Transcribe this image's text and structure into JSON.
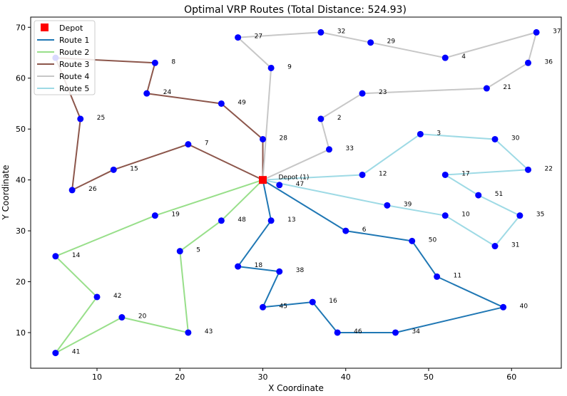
{
  "chart_data": {
    "type": "line",
    "title": "Optimal VRP Routes (Total Distance: 524.93)",
    "xlabel": "X Coordinate",
    "ylabel": "Y Coordinate",
    "xlim": [
      2,
      66
    ],
    "ylim": [
      3,
      72
    ],
    "xticks": [
      10,
      20,
      30,
      40,
      50,
      60
    ],
    "yticks": [
      10,
      20,
      30,
      40,
      50,
      60,
      70
    ],
    "grid": false,
    "legend_position": "top-left",
    "depot": {
      "label": "Depot (1)",
      "x": 30,
      "y": 40,
      "legend": "Depot",
      "color": "#ff0000"
    },
    "points": [
      {
        "id": "2",
        "x": 37,
        "y": 52
      },
      {
        "id": "3",
        "x": 49,
        "y": 49
      },
      {
        "id": "4",
        "x": 52,
        "y": 64
      },
      {
        "id": "5",
        "x": 20,
        "y": 26
      },
      {
        "id": "6",
        "x": 40,
        "y": 30
      },
      {
        "id": "7",
        "x": 21,
        "y": 47
      },
      {
        "id": "8",
        "x": 17,
        "y": 63
      },
      {
        "id": "9",
        "x": 31,
        "y": 62
      },
      {
        "id": "10",
        "x": 52,
        "y": 33
      },
      {
        "id": "11",
        "x": 51,
        "y": 21
      },
      {
        "id": "12",
        "x": 42,
        "y": 41
      },
      {
        "id": "13",
        "x": 31,
        "y": 32
      },
      {
        "id": "14",
        "x": 5,
        "y": 25
      },
      {
        "id": "15",
        "x": 12,
        "y": 42
      },
      {
        "id": "16",
        "x": 36,
        "y": 16
      },
      {
        "id": "17",
        "x": 52,
        "y": 41
      },
      {
        "id": "18",
        "x": 27,
        "y": 23
      },
      {
        "id": "19",
        "x": 17,
        "y": 33
      },
      {
        "id": "20",
        "x": 13,
        "y": 13
      },
      {
        "id": "21",
        "x": 57,
        "y": 58
      },
      {
        "id": "22",
        "x": 62,
        "y": 42
      },
      {
        "id": "23",
        "x": 42,
        "y": 57
      },
      {
        "id": "24",
        "x": 16,
        "y": 57
      },
      {
        "id": "25",
        "x": 8,
        "y": 52
      },
      {
        "id": "26",
        "x": 7,
        "y": 38
      },
      {
        "id": "27",
        "x": 27,
        "y": 68
      },
      {
        "id": "28",
        "x": 30,
        "y": 48
      },
      {
        "id": "29",
        "x": 43,
        "y": 67
      },
      {
        "id": "30",
        "x": 58,
        "y": 48
      },
      {
        "id": "31",
        "x": 58,
        "y": 27
      },
      {
        "id": "32",
        "x": 37,
        "y": 69
      },
      {
        "id": "33",
        "x": 38,
        "y": 46
      },
      {
        "id": "34",
        "x": 46,
        "y": 10
      },
      {
        "id": "35",
        "x": 61,
        "y": 33
      },
      {
        "id": "36",
        "x": 62,
        "y": 63
      },
      {
        "id": "37",
        "x": 63,
        "y": 69
      },
      {
        "id": "38",
        "x": 32,
        "y": 22
      },
      {
        "id": "39",
        "x": 45,
        "y": 35
      },
      {
        "id": "40",
        "x": 59,
        "y": 15
      },
      {
        "id": "41",
        "x": 5,
        "y": 6
      },
      {
        "id": "42",
        "x": 10,
        "y": 17
      },
      {
        "id": "43",
        "x": 21,
        "y": 10
      },
      {
        "id": "45",
        "x": 30,
        "y": 15
      },
      {
        "id": "46",
        "x": 39,
        "y": 10
      },
      {
        "id": "47",
        "x": 32,
        "y": 39
      },
      {
        "id": "48",
        "x": 25,
        "y": 32
      },
      {
        "id": "49",
        "x": 25,
        "y": 55
      },
      {
        "id": "50",
        "x": 48,
        "y": 28
      },
      {
        "id": "51",
        "x": 56,
        "y": 37
      }
    ],
    "series": [
      {
        "name": "Route 1",
        "color": "#1f77b4",
        "route": [
          "depot",
          "6",
          "50",
          "11",
          "40",
          "34",
          "46",
          "16",
          "45",
          "38",
          "18",
          "13",
          "depot"
        ]
      },
      {
        "name": "Route 2",
        "color": "#98df8a",
        "route": [
          "depot",
          "19",
          "14",
          "42",
          "41",
          "20",
          "43",
          "5",
          "48",
          "depot"
        ]
      },
      {
        "name": "Route 3",
        "color": "#8c564b",
        "route": [
          "depot",
          "7",
          "15",
          "26",
          "25",
          "L",
          "8",
          "24",
          "49",
          "28",
          "depot"
        ]
      },
      {
        "name": "Route 4",
        "color": "#c7c7c7",
        "route": [
          "depot",
          "33",
          "2",
          "23",
          "21",
          "36",
          "37",
          "4",
          "29",
          "32",
          "27",
          "9",
          "depot"
        ]
      },
      {
        "name": "Route 5",
        "color": "#9edae5",
        "route": [
          "depot",
          "12",
          "3",
          "30",
          "22",
          "17",
          "51",
          "35",
          "31",
          "10",
          "39",
          "depot"
        ]
      }
    ],
    "extra_nodes": {
      "L": {
        "x": 5,
        "y": 64
      }
    }
  }
}
